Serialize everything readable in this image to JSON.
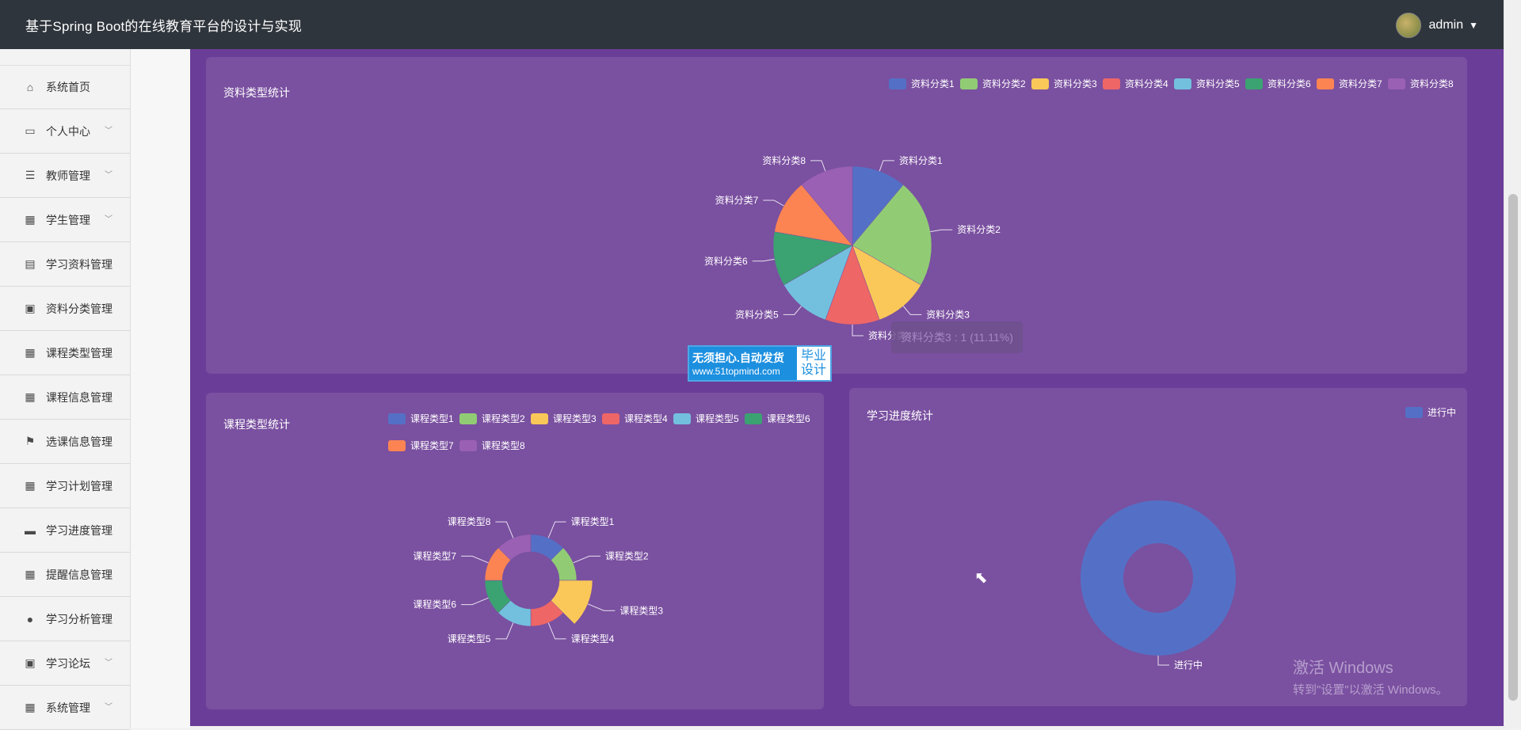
{
  "header": {
    "title": "基于Spring Boot的在线教育平台的设计与实现",
    "user": "admin"
  },
  "sidebar": {
    "items": [
      {
        "label": "系统首页",
        "icon": "home-icon",
        "glyph": "⌂",
        "expandable": false
      },
      {
        "label": "个人中心",
        "icon": "card-icon",
        "glyph": "▭",
        "expandable": true
      },
      {
        "label": "教师管理",
        "icon": "sliders-icon",
        "glyph": "☰",
        "expandable": true
      },
      {
        "label": "学生管理",
        "icon": "grid-icon",
        "glyph": "▦",
        "expandable": true
      },
      {
        "label": "学习资料管理",
        "icon": "chart-icon",
        "glyph": "▤",
        "expandable": false
      },
      {
        "label": "资料分类管理",
        "icon": "clipboard-icon",
        "glyph": "▣",
        "expandable": false
      },
      {
        "label": "课程类型管理",
        "icon": "grid-icon",
        "glyph": "▦",
        "expandable": false
      },
      {
        "label": "课程信息管理",
        "icon": "grid-icon",
        "glyph": "▦",
        "expandable": false
      },
      {
        "label": "选课信息管理",
        "icon": "flag-icon",
        "glyph": "⚑",
        "expandable": false
      },
      {
        "label": "学习计划管理",
        "icon": "grid-icon",
        "glyph": "▦",
        "expandable": false
      },
      {
        "label": "学习进度管理",
        "icon": "briefcase-icon",
        "glyph": "▬",
        "expandable": false
      },
      {
        "label": "提醒信息管理",
        "icon": "grid-icon",
        "glyph": "▦",
        "expandable": false
      },
      {
        "label": "学习分析管理",
        "icon": "user-icon",
        "glyph": "●",
        "expandable": false
      },
      {
        "label": "学习论坛",
        "icon": "clipboard-icon",
        "glyph": "▣",
        "expandable": true
      },
      {
        "label": "系统管理",
        "icon": "grid-icon",
        "glyph": "▦",
        "expandable": true
      }
    ]
  },
  "colors": [
    "#5470c6",
    "#91cc75",
    "#fac858",
    "#ee6666",
    "#73c0de",
    "#3ba272",
    "#fc8452",
    "#9a60b4"
  ],
  "chart_data": [
    {
      "type": "pie",
      "title": "资料类型统计",
      "categories": [
        "资料分类1",
        "资料分类2",
        "资料分类3",
        "资料分类4",
        "资料分类5",
        "资料分类6",
        "资料分类7",
        "资料分类8"
      ],
      "values": [
        1,
        2,
        1,
        1,
        1,
        1,
        1,
        1
      ],
      "legend": "top-right",
      "tooltip": "资料分类3 : 1 (11.11%)"
    },
    {
      "type": "pie",
      "variant": "rose-donut",
      "title": "课程类型统计",
      "categories": [
        "课程类型1",
        "课程类型2",
        "课程类型3",
        "课程类型4",
        "课程类型5",
        "课程类型6",
        "课程类型7",
        "课程类型8"
      ],
      "values": [
        1,
        1,
        2,
        1,
        1,
        1,
        1,
        1
      ],
      "legend": "top"
    },
    {
      "type": "pie",
      "variant": "donut",
      "title": "学习进度统计",
      "categories": [
        "进行中"
      ],
      "values": [
        1
      ],
      "legend": "top-right"
    }
  ],
  "watermark": {
    "line1": "无须担心.自动发货",
    "line2": "www.51topmind.com",
    "right1": "毕业",
    "right2": "设计"
  },
  "windows": {
    "line1": "激活 Windows",
    "line2": "转到\"设置\"以激活 Windows。"
  }
}
